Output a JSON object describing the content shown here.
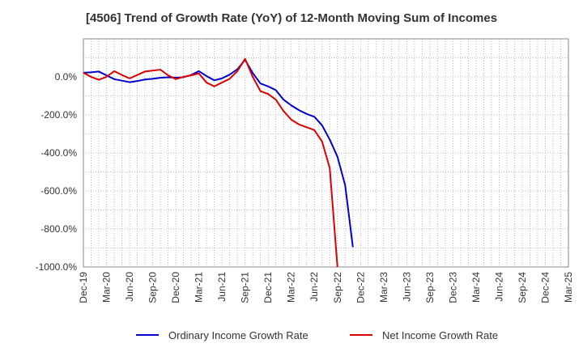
{
  "chart_data": {
    "type": "line",
    "title": "[4506]  Trend of Growth Rate (YoY) of 12-Month Moving Sum of Incomes",
    "xlabel": "",
    "ylabel": "",
    "ylim": [
      -1000,
      200
    ],
    "y_ticks": [
      0,
      -200,
      -400,
      -600,
      -800,
      -1000
    ],
    "y_tick_labels": [
      "0.0%",
      "-200.0%",
      "-400.0%",
      "-600.0%",
      "-800.0%",
      "-1000.0%"
    ],
    "x_tick_labels": [
      "Dec-19",
      "Mar-20",
      "Jun-20",
      "Sep-20",
      "Dec-20",
      "Mar-21",
      "Jun-21",
      "Sep-21",
      "Dec-21",
      "Mar-22",
      "Jun-22",
      "Sep-22",
      "Dec-22",
      "Mar-23",
      "Jun-23",
      "Sep-23",
      "Dec-23",
      "Mar-24",
      "Jun-24",
      "Sep-24",
      "Dec-24",
      "Mar-25"
    ],
    "grid": true,
    "legend_position": "bottom",
    "series": [
      {
        "name": "Ordinary Income Growth Rate",
        "color": "#0000cc",
        "values": [
          22,
          24,
          28,
          8,
          -12,
          -20,
          -28,
          -22,
          -14,
          -10,
          -5,
          -2,
          -4,
          -2,
          10,
          30,
          4,
          -18,
          -8,
          12,
          40,
          90,
          20,
          -35,
          -50,
          -70,
          -120,
          -150,
          -175,
          -195,
          -210,
          -255,
          -330,
          -420,
          -570,
          -895
        ]
      },
      {
        "name": "Net Income Growth Rate",
        "color": "#dd0000",
        "values": [
          22,
          0,
          -15,
          0,
          30,
          10,
          -8,
          10,
          28,
          33,
          38,
          8,
          -12,
          0,
          8,
          18,
          -30,
          -50,
          -30,
          -10,
          30,
          95,
          0,
          -75,
          -90,
          -120,
          -180,
          -225,
          -250,
          -265,
          -280,
          -340,
          -480,
          -1000
        ]
      }
    ]
  }
}
